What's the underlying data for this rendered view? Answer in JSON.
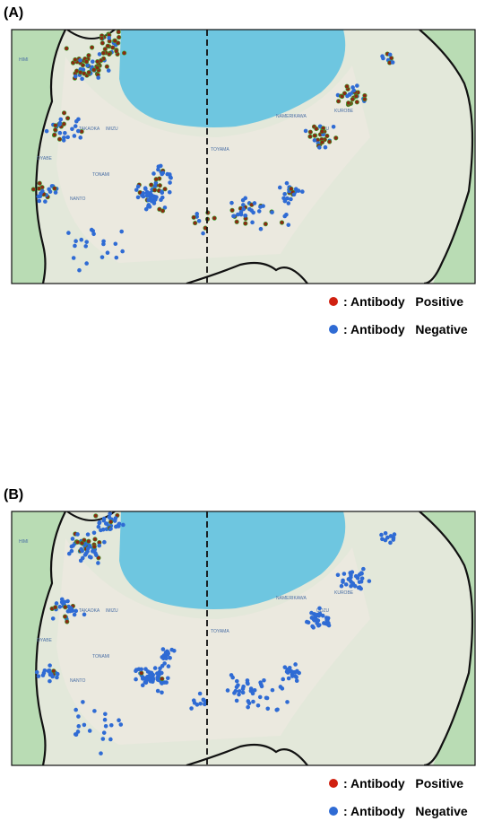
{
  "panels": [
    {
      "label": "(A)",
      "legend": [
        ": Antibody   Positive",
        ": Antibody   Negative"
      ]
    },
    {
      "label": "(B)",
      "legend": [
        ": Antibody   Positive",
        ": Antibody   Negative"
      ]
    }
  ],
  "places": [
    "HIMI",
    "TAKAOKA",
    "IMIZU",
    "OYABE",
    "TONAMI",
    "NANTO",
    "TOYAMA",
    "NAMERIKAWA",
    "UOZU",
    "KUROBE"
  ]
}
